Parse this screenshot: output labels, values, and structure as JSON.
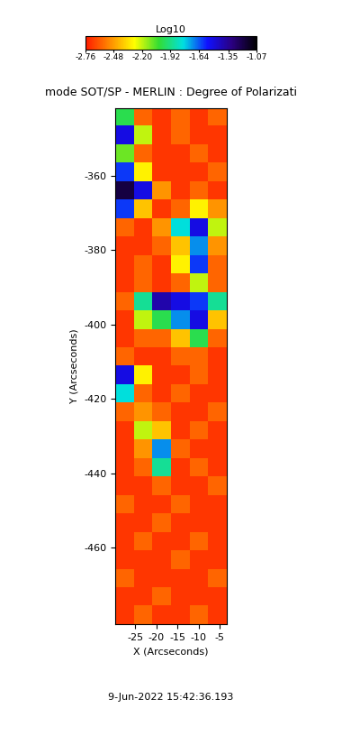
{
  "chart_data": {
    "type": "heatmap",
    "title": "mode SOT/SP - MERLIN : Degree of Polarizati",
    "xlabel": "X (Arcseconds)",
    "ylabel": "Y (Arcseconds)",
    "xlim": [
      -29.7,
      -3.3
    ],
    "ylim": [
      -480.6,
      -341.8
    ],
    "xticks": [
      -25,
      -20,
      -15,
      -10,
      -5
    ],
    "yticks": [
      -460,
      -440,
      -420,
      -400,
      -380,
      -360
    ],
    "annotations": [
      "9-Jun-2022 15:42:36.193"
    ],
    "colorbar": {
      "label": "Log10",
      "range": [
        -2.76,
        -1.07
      ],
      "ticks": [
        -2.76,
        -2.48,
        {
          "value": -2.2,
          "label": "-2.20"
        },
        -1.92,
        -1.64,
        -1.35,
        -1.07
      ]
    },
    "cells": [
      [
        -2.0,
        -2.6,
        -2.7,
        -2.6,
        -2.7,
        -2.6
      ],
      [
        -1.5,
        -2.2,
        -2.7,
        -2.6,
        -2.7,
        -2.7
      ],
      [
        -2.1,
        -2.6,
        -2.7,
        -2.7,
        -2.6,
        -2.7
      ],
      [
        -1.6,
        -2.3,
        -2.7,
        -2.7,
        -2.7,
        -2.6
      ],
      [
        -1.2,
        -1.5,
        -2.5,
        -2.7,
        -2.6,
        -2.7
      ],
      [
        -1.6,
        -2.4,
        -2.7,
        -2.6,
        -2.3,
        -2.5
      ],
      [
        -2.6,
        -2.7,
        -2.5,
        -1.8,
        -1.5,
        -2.2
      ],
      [
        -2.7,
        -2.7,
        -2.6,
        -2.4,
        -1.7,
        -2.5
      ],
      [
        -2.7,
        -2.6,
        -2.7,
        -2.3,
        -1.6,
        -2.6
      ],
      [
        -2.7,
        -2.6,
        -2.7,
        -2.6,
        -2.2,
        -2.6
      ],
      [
        -2.6,
        -1.9,
        -1.4,
        -1.5,
        -1.6,
        -1.9
      ],
      [
        -2.7,
        -2.2,
        -2.0,
        -1.7,
        -1.5,
        -2.4
      ],
      [
        -2.7,
        -2.6,
        -2.6,
        -2.4,
        -2.0,
        -2.6
      ],
      [
        -2.6,
        -2.7,
        -2.7,
        -2.6,
        -2.6,
        -2.7
      ],
      [
        -1.5,
        -2.3,
        -2.7,
        -2.7,
        -2.6,
        -2.7
      ],
      [
        -1.8,
        -2.6,
        -2.7,
        -2.6,
        -2.7,
        -2.7
      ],
      [
        -2.6,
        -2.5,
        -2.6,
        -2.7,
        -2.7,
        -2.6
      ],
      [
        -2.7,
        -2.2,
        -2.4,
        -2.7,
        -2.6,
        -2.7
      ],
      [
        -2.7,
        -2.5,
        -1.7,
        -2.6,
        -2.7,
        -2.7
      ],
      [
        -2.7,
        -2.6,
        -1.9,
        -2.7,
        -2.6,
        -2.7
      ],
      [
        -2.7,
        -2.7,
        -2.6,
        -2.7,
        -2.7,
        -2.6
      ],
      [
        -2.6,
        -2.7,
        -2.7,
        -2.6,
        -2.7,
        -2.7
      ],
      [
        -2.7,
        -2.7,
        -2.6,
        -2.7,
        -2.7,
        -2.7
      ],
      [
        -2.7,
        -2.6,
        -2.7,
        -2.7,
        -2.6,
        -2.7
      ],
      [
        -2.7,
        -2.7,
        -2.7,
        -2.6,
        -2.7,
        -2.7
      ],
      [
        -2.6,
        -2.7,
        -2.7,
        -2.7,
        -2.7,
        -2.6
      ],
      [
        -2.7,
        -2.7,
        -2.6,
        -2.7,
        -2.7,
        -2.7
      ],
      [
        -2.7,
        -2.6,
        -2.7,
        -2.7,
        -2.6,
        -2.7
      ]
    ]
  }
}
